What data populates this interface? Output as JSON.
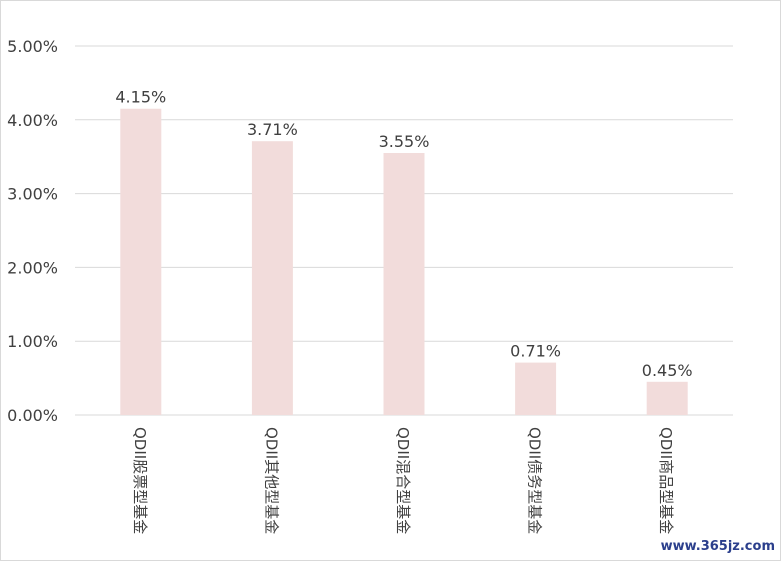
{
  "chart_data": {
    "type": "bar",
    "categories": [
      "QDII股票型基金",
      "QDII其他型基金",
      "QDII混合型基金",
      "QDII债务型基金",
      "QDII商品型基金"
    ],
    "values": [
      4.15,
      3.71,
      3.55,
      0.71,
      0.45
    ],
    "data_labels": [
      "4.15%",
      "3.71%",
      "3.55%",
      "0.71%",
      "0.45%"
    ],
    "y_ticks": [
      0,
      1,
      2,
      3,
      4,
      5
    ],
    "y_tick_labels": [
      "0.00%",
      "1.00%",
      "2.00%",
      "3.00%",
      "4.00%",
      "5.00%"
    ],
    "ylim": [
      0,
      5
    ],
    "grid": true,
    "legend": "none",
    "bar_color": "#f2dcdb",
    "gridline_color": "#d9d9d9",
    "text_color": "#404040"
  },
  "watermark": "www.365jz.com"
}
